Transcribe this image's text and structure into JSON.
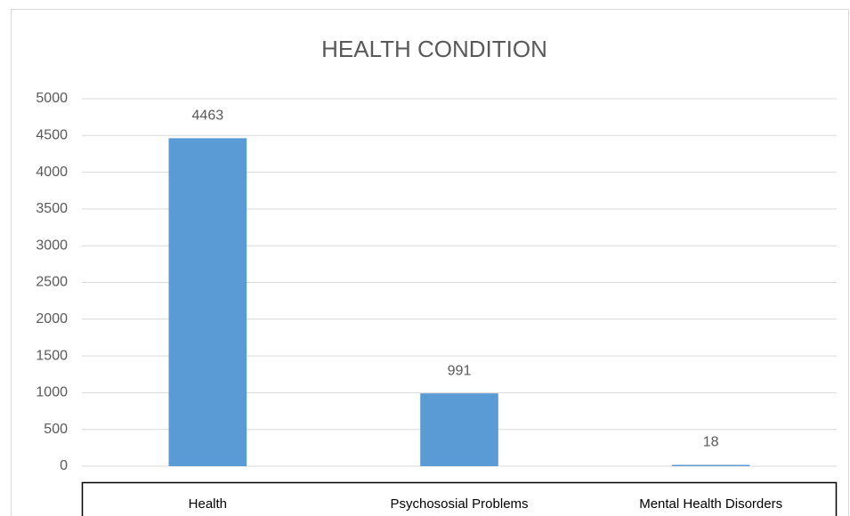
{
  "chart_data": {
    "type": "bar",
    "title": "HEALTH CONDITION",
    "categories": [
      "Health",
      "Psychososial Problems",
      "Mental Health Disorders"
    ],
    "values": [
      4463,
      991,
      18
    ],
    "color": "#5b9bd5",
    "ylim": [
      0,
      5000
    ],
    "yticks": [
      0,
      500,
      1000,
      1500,
      2000,
      2500,
      3000,
      3500,
      4000,
      4500,
      5000
    ],
    "grid": true
  }
}
